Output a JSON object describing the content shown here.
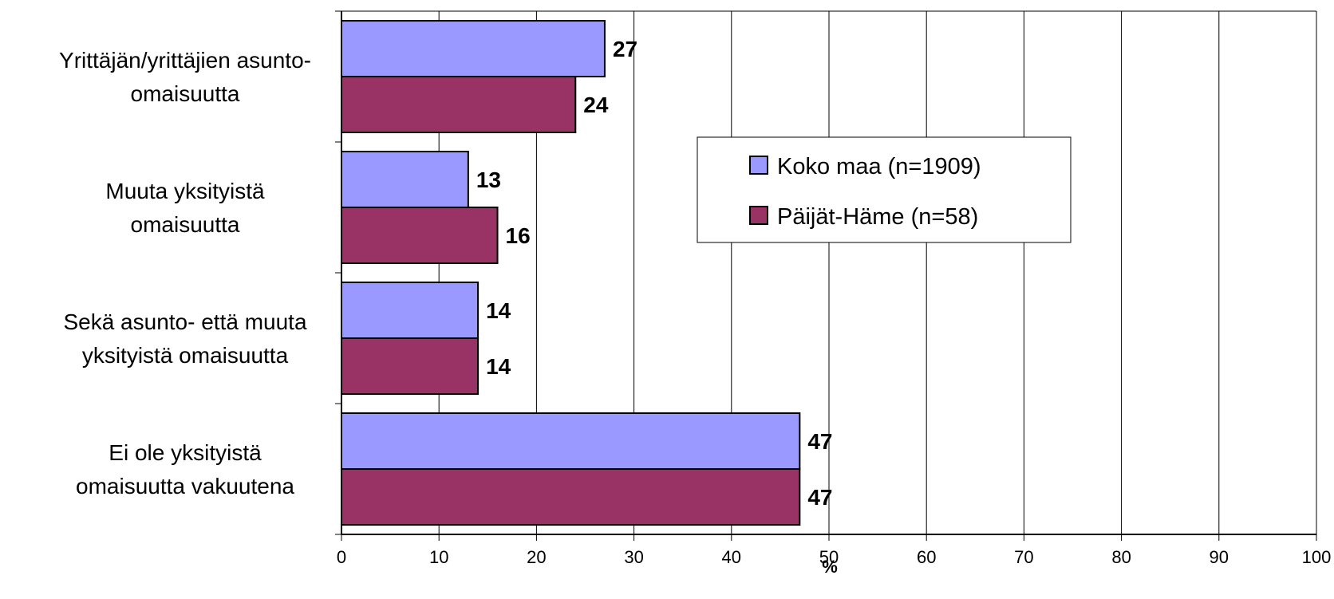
{
  "chart_data": {
    "type": "bar",
    "orientation": "horizontal",
    "categories": [
      [
        "Yrittäjän/yrittäjien asunto-",
        "omaisuutta"
      ],
      [
        "Muuta yksityistä",
        "omaisuutta"
      ],
      [
        "Sekä asunto- että muuta",
        "yksityistä omaisuutta"
      ],
      [
        "Ei ole yksityistä",
        "omaisuutta vakuutena"
      ]
    ],
    "series": [
      {
        "name": "Koko maa (n=1909)",
        "color": "#9999FF",
        "values": [
          27,
          13,
          14,
          47
        ]
      },
      {
        "name": "Päijät-Häme (n=58)",
        "color": "#993366",
        "values": [
          24,
          16,
          14,
          47
        ]
      }
    ],
    "xlabel": "%",
    "ylabel": "",
    "xlim": [
      0,
      100
    ],
    "xticks": [
      "0",
      "10",
      "20",
      "30",
      "40",
      "50",
      "60",
      "70",
      "80",
      "90",
      "100"
    ],
    "grid": "vertical",
    "legend_position": "center-right",
    "data_labels": true
  }
}
